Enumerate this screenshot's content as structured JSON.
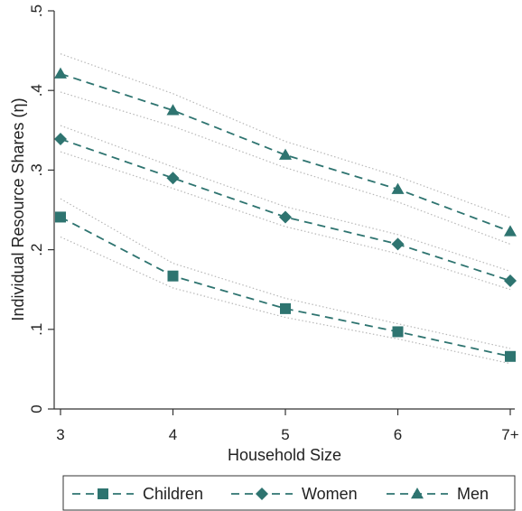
{
  "chart_data": {
    "type": "line",
    "xlabel": "Household Size",
    "ylabel": "Individual Resource Shares (η)",
    "categories": [
      "3",
      "4",
      "5",
      "6",
      "7+"
    ],
    "ylim": [
      0,
      0.5
    ],
    "yticks": [
      {
        "value": 0,
        "label": "0"
      },
      {
        "value": 0.1,
        "label": ".1"
      },
      {
        "value": 0.2,
        "label": ".2"
      },
      {
        "value": 0.3,
        "label": ".3"
      },
      {
        "value": 0.4,
        "label": ".4"
      },
      {
        "value": 0.5,
        "label": ".5"
      }
    ],
    "grid": false,
    "legend_position": "bottom",
    "series": [
      {
        "name": "Children",
        "marker": "square",
        "color": "#2e7470",
        "values": [
          0.241,
          0.167,
          0.126,
          0.097,
          0.066
        ],
        "ci_lower": [
          0.216,
          0.152,
          0.115,
          0.088,
          0.057
        ],
        "ci_upper": [
          0.264,
          0.183,
          0.139,
          0.107,
          0.076
        ]
      },
      {
        "name": "Women",
        "marker": "diamond",
        "color": "#2e7470",
        "values": [
          0.339,
          0.29,
          0.241,
          0.207,
          0.161
        ],
        "ci_lower": [
          0.323,
          0.277,
          0.229,
          0.195,
          0.15
        ],
        "ci_upper": [
          0.356,
          0.304,
          0.254,
          0.219,
          0.173
        ]
      },
      {
        "name": "Men",
        "marker": "triangle",
        "color": "#2e7470",
        "values": [
          0.421,
          0.375,
          0.319,
          0.276,
          0.223
        ],
        "ci_lower": [
          0.398,
          0.355,
          0.303,
          0.26,
          0.207
        ],
        "ci_upper": [
          0.446,
          0.396,
          0.336,
          0.292,
          0.24
        ]
      }
    ]
  }
}
